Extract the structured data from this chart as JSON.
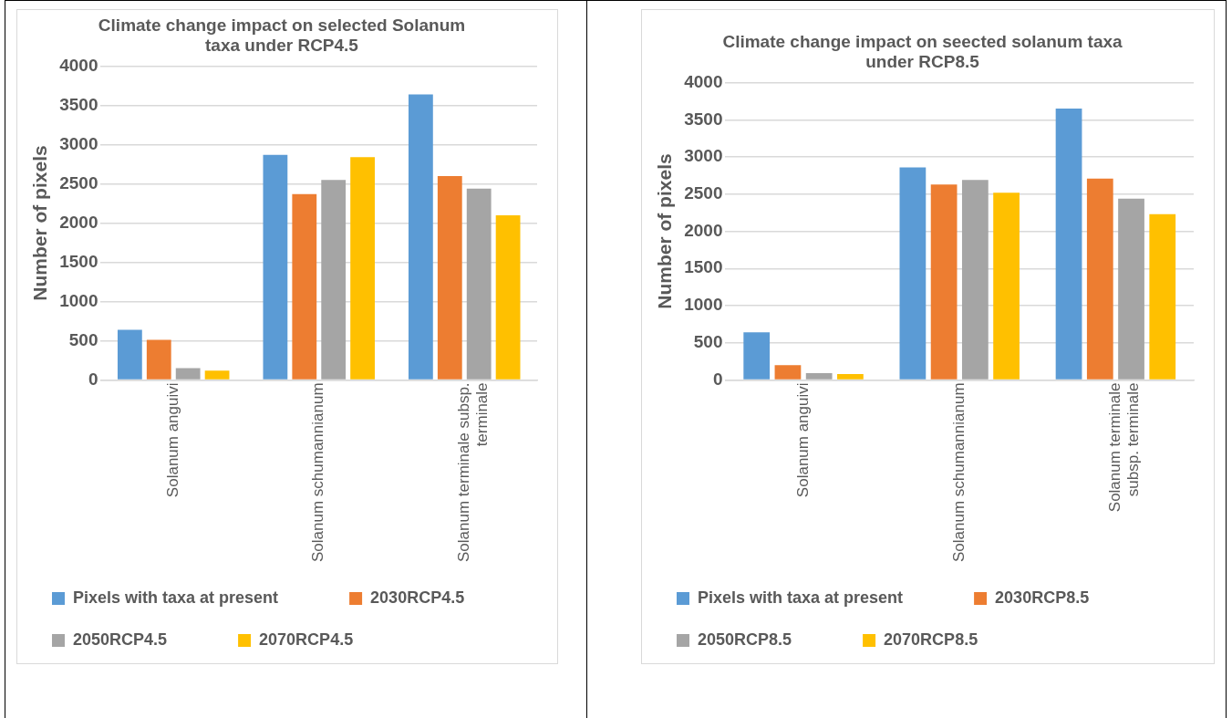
{
  "chart_data": [
    {
      "type": "bar",
      "title": "Climate change impact on selected Solanum taxa under RCP4.5",
      "ylabel": "Number of pixels",
      "categories": [
        "Solanum anguivi",
        "Solanum schumannianum",
        "Solanum terminale subsp. terminale"
      ],
      "series": [
        {
          "name": "Pixels with taxa at present",
          "color": "#5b9bd5",
          "values": [
            640,
            2870,
            3640
          ]
        },
        {
          "name": "2030RCP4.5",
          "color": "#ed7d31",
          "values": [
            510,
            2370,
            2600
          ]
        },
        {
          "name": "2050RCP4.5",
          "color": "#a5a5a5",
          "values": [
            150,
            2550,
            2440
          ]
        },
        {
          "name": "2070RCP4.5",
          "color": "#ffc000",
          "values": [
            120,
            2840,
            2100
          ]
        }
      ],
      "ylim": [
        0,
        4000
      ],
      "yticks": [
        0,
        500,
        1000,
        1500,
        2000,
        2500,
        3000,
        3500,
        4000
      ],
      "grid": "y",
      "legend": "bottom"
    },
    {
      "type": "bar",
      "title": "Climate change impact on seected solanum taxa under RCP8.5",
      "ylabel": "Number of pixels",
      "categories": [
        "Solanum anguivi",
        "Solanum schumannianum",
        "Solanum terminale subsp. terminale"
      ],
      "series": [
        {
          "name": "Pixels with taxa at present",
          "color": "#5b9bd5",
          "values": [
            640,
            2860,
            3650
          ]
        },
        {
          "name": "2030RCP8.5",
          "color": "#ed7d31",
          "values": [
            200,
            2630,
            2710
          ]
        },
        {
          "name": "2050RCP8.5",
          "color": "#a5a5a5",
          "values": [
            90,
            2690,
            2440
          ]
        },
        {
          "name": "2070RCP8.5",
          "color": "#ffc000",
          "values": [
            80,
            2520,
            2230
          ]
        }
      ],
      "ylim": [
        0,
        4000
      ],
      "yticks": [
        0,
        500,
        1000,
        1500,
        2000,
        2500,
        3000,
        3500,
        4000
      ],
      "grid": "y",
      "legend": "bottom"
    }
  ]
}
